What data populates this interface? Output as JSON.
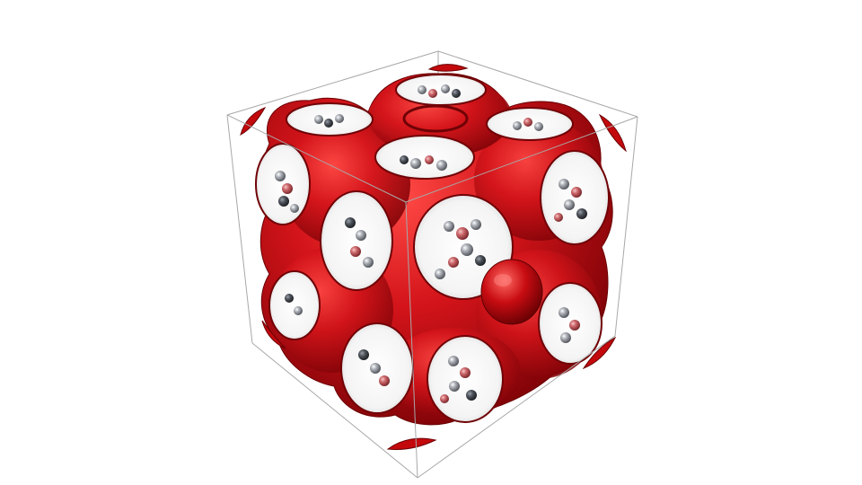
{
  "scene": {
    "subject": "iso-surface",
    "colors": {
      "background": "#ffffff",
      "surface": "#c4090d",
      "surface_dark": "#7a0206",
      "surface_highlight": "#ff4a46",
      "cavity": "#ffffff",
      "bounding_box": "#9a9a9a",
      "atom_grey": "#9ea2a8",
      "atom_dark": "#4a4f57",
      "atom_red": "#c25a5f"
    },
    "icons": [
      "cube-wireframe-icon",
      "sphere-atom-icon"
    ]
  }
}
